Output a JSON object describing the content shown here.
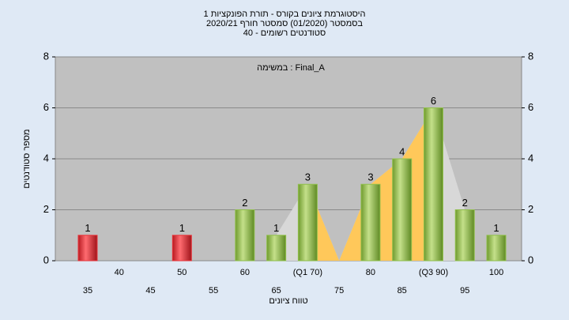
{
  "chart_data": {
    "type": "bar",
    "title": [
      "היסטוגרמת ציונים בקורס - תורת הפונקציות 1",
      "בסמסטר  (01/2020)  סמסטר חורף  2020/21",
      "סטודנטים רשומים - 40"
    ],
    "annotation": "במשימה : Final_A",
    "x_label": "טווח ציונים",
    "y_label": "מספר סטודנטים",
    "categories": [
      "35",
      "40",
      "45",
      "50",
      "55",
      "60",
      "65",
      "(Q1 70)",
      "75",
      "80",
      "85",
      "(Q3 90)",
      "95",
      "100"
    ],
    "values": [
      1,
      0,
      0,
      1,
      0,
      2,
      1,
      3,
      0,
      3,
      4,
      6,
      2,
      1
    ],
    "colors": [
      "#e8353b",
      "#8fbf4a",
      "#8fbf4a",
      "#e8353b",
      "#8fbf4a",
      "#8fbf4a",
      "#8fbf4a",
      "#8fbf4a",
      "#8fbf4a",
      "#8fbf4a",
      "#8fbf4a",
      "#8fbf4a",
      "#8fbf4a",
      "#8fbf4a"
    ],
    "ylim": [
      0,
      8
    ],
    "yticks": [
      0,
      2,
      4,
      6,
      8
    ],
    "y2lim": [
      0,
      8
    ],
    "y2ticks": [
      0,
      2,
      4,
      6,
      8
    ],
    "grid": true
  }
}
